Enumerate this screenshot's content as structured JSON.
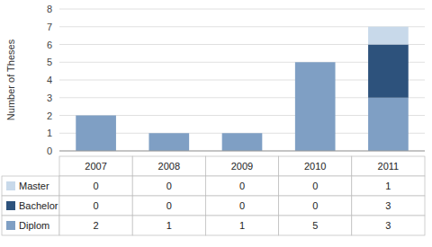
{
  "chart_data": {
    "type": "bar",
    "stacked": true,
    "categories": [
      "2007",
      "2008",
      "2009",
      "2010",
      "2011"
    ],
    "series": [
      {
        "name": "Diplom",
        "color": "#7f9fc4",
        "values": [
          2,
          1,
          1,
          5,
          3
        ]
      },
      {
        "name": "Bachelor",
        "color": "#2d527c",
        "values": [
          0,
          0,
          0,
          0,
          3
        ]
      },
      {
        "name": "Master",
        "color": "#c8d9ea",
        "values": [
          0,
          0,
          0,
          0,
          1
        ]
      }
    ],
    "ylabel": "Number of Theses",
    "ylim": [
      0,
      8
    ],
    "yticks": [
      0,
      1,
      2,
      3,
      4,
      5,
      6,
      7,
      8
    ],
    "grid": true
  }
}
